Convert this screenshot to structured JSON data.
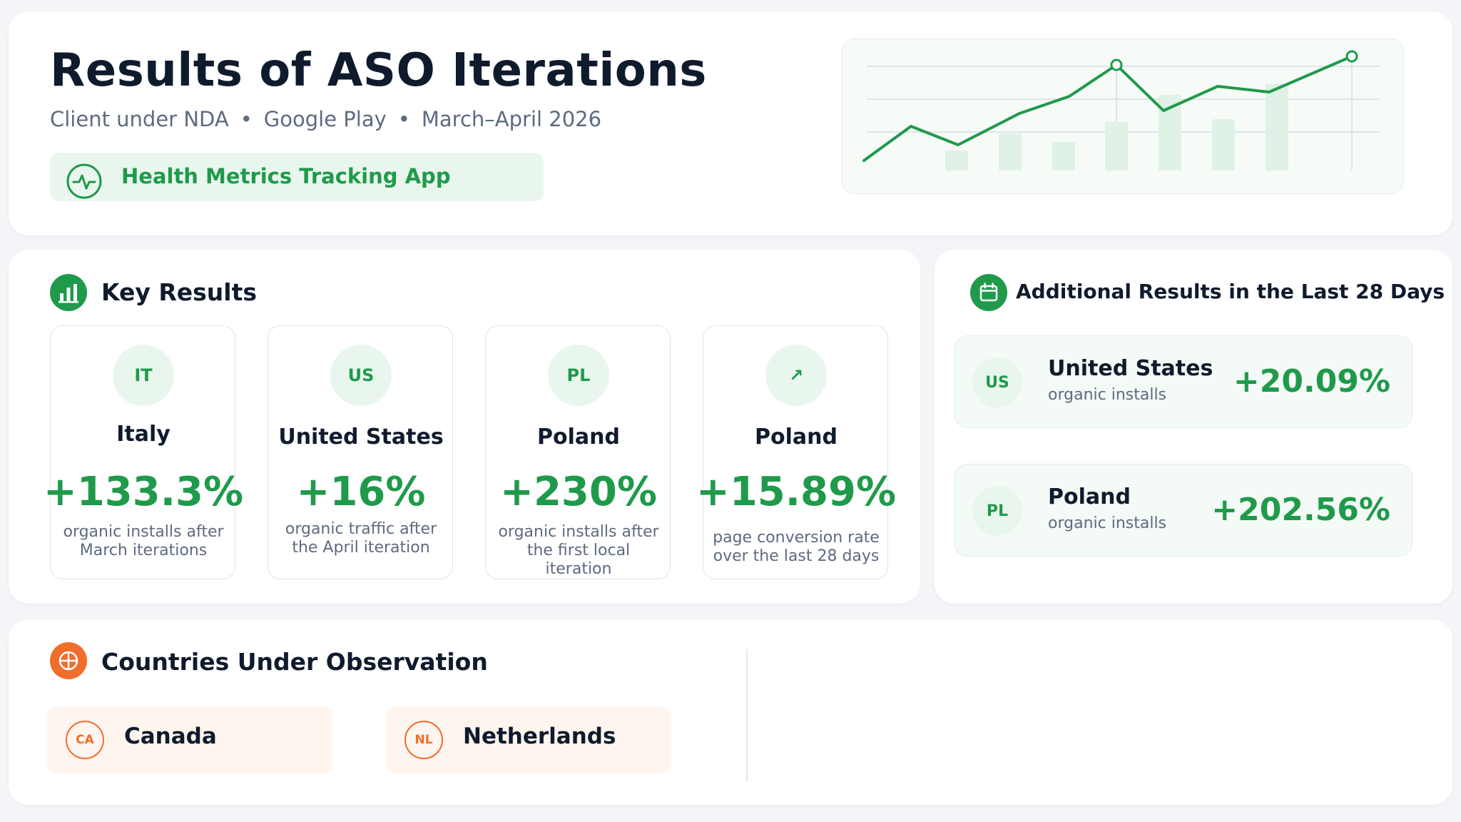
{
  "header": {
    "title": "Results of ASO Iterations",
    "client": "Client under NDA",
    "store": "Google Play",
    "period": "March–April 2026",
    "separator": "•",
    "app_name": "Health Metrics Tracking App"
  },
  "key_results": {
    "title": "Key Results",
    "cards": [
      {
        "badge": "IT",
        "country": "Italy",
        "value": "+133.3%",
        "description": "organic installs after March iterations"
      },
      {
        "badge": "US",
        "country": "United States",
        "value": "+16%",
        "description": "organic traffic after the April iteration"
      },
      {
        "badge": "PL",
        "country": "Poland",
        "value": "+230%",
        "description": "organic installs after the first local iteration"
      },
      {
        "badge": "↗",
        "country": "Poland",
        "value": "+15.89%",
        "description": "page conversion rate over the last 28 days"
      }
    ]
  },
  "additional": {
    "title": "Additional Results in the Last 28 Days",
    "rows": [
      {
        "badge": "US",
        "country": "United States",
        "metric": "organic installs",
        "value": "+20.09%"
      },
      {
        "badge": "PL",
        "country": "Poland",
        "metric": "organic installs",
        "value": "+202.56%"
      }
    ]
  },
  "observation": {
    "title": "Countries Under Observation",
    "countries": [
      {
        "badge": "CA",
        "name": "Canada"
      },
      {
        "badge": "NL",
        "name": "Netherlands"
      }
    ]
  },
  "colors": {
    "accent_green": "#1f9a4b",
    "accent_orange": "#f06d2b",
    "text_dark": "#0f1b2d",
    "text_muted": "#5d6b80"
  },
  "icons": {
    "app": "pulse-icon",
    "key_results": "bar-chart-icon",
    "additional": "calendar-icon",
    "observation": "globe-icon"
  }
}
